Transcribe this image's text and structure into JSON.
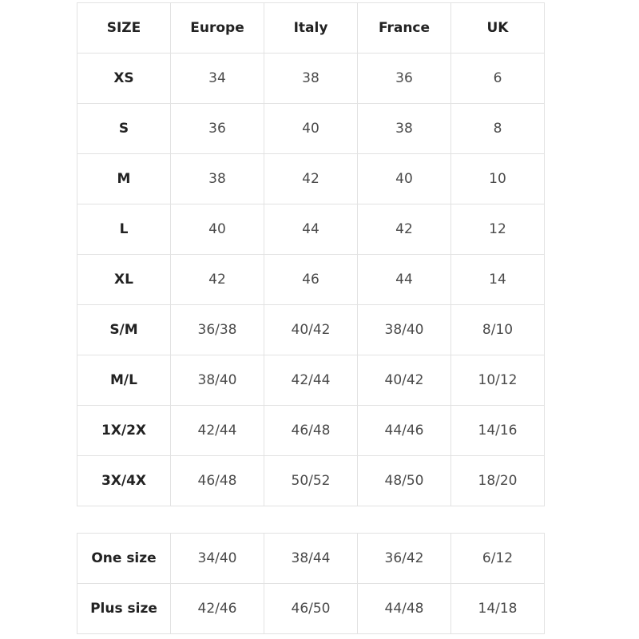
{
  "main_table": {
    "headers": [
      "SIZE",
      "Europe",
      "Italy",
      "France",
      "UK"
    ],
    "rows": [
      [
        "XS",
        "34",
        "38",
        "36",
        "6"
      ],
      [
        "S",
        "36",
        "40",
        "38",
        "8"
      ],
      [
        "M",
        "38",
        "42",
        "40",
        "10"
      ],
      [
        "L",
        "40",
        "44",
        "42",
        "12"
      ],
      [
        "XL",
        "42",
        "46",
        "44",
        "14"
      ],
      [
        "S/M",
        "36/38",
        "40/42",
        "38/40",
        "8/10"
      ],
      [
        "M/L",
        "38/40",
        "42/44",
        "40/42",
        "10/12"
      ],
      [
        "1X/2X",
        "42/44",
        "46/48",
        "44/46",
        "14/16"
      ],
      [
        "3X/4X",
        "46/48",
        "50/52",
        "48/50",
        "18/20"
      ]
    ]
  },
  "extra_table": {
    "rows": [
      [
        "One size",
        "34/40",
        "38/44",
        "36/42",
        "6/12"
      ],
      [
        "Plus size",
        "42/46",
        "46/50",
        "44/48",
        "14/18"
      ]
    ]
  },
  "colors": {
    "border": "#e2e2e2",
    "header_text": "#222222",
    "cell_text": "#4a4a4a"
  }
}
